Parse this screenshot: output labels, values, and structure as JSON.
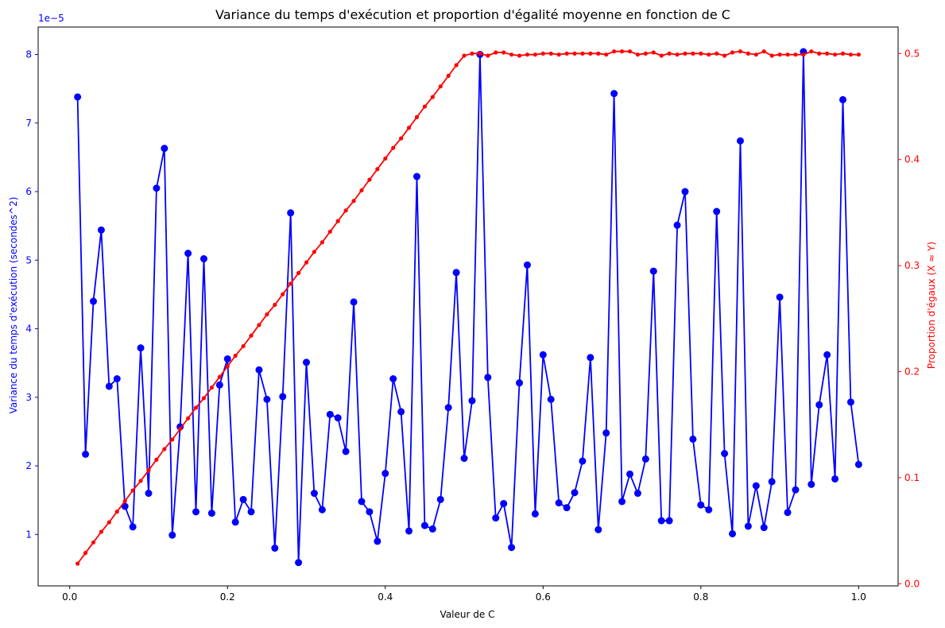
{
  "chart_data": {
    "type": "line",
    "title": "Variance du temps d'exécution et proportion d'égalité moyenne en fonction de C",
    "xlabel": "Valeur de C",
    "ylabel_left": "Variance du temps d'exécution (secondes^2)",
    "ylabel_right": "Proportion d'égaux (X ≈ Y)",
    "left_axis_multiplier": "1e−5",
    "xlim": [
      -0.04,
      1.05
    ],
    "ylim_left": [
      0.25,
      8.4
    ],
    "ylim_right": [
      -0.002,
      0.525
    ],
    "x_ticks": [
      0.0,
      0.2,
      0.4,
      0.6,
      0.8,
      1.0
    ],
    "x_tick_labels": [
      "0.0",
      "0.2",
      "0.4",
      "0.6",
      "0.8",
      "1.0"
    ],
    "left_ticks": [
      1,
      2,
      3,
      4,
      5,
      6,
      7,
      8
    ],
    "left_tick_labels": [
      "1",
      "2",
      "3",
      "4",
      "5",
      "6",
      "7",
      "8"
    ],
    "right_ticks": [
      0.0,
      0.1,
      0.2,
      0.3,
      0.4,
      0.5
    ],
    "right_tick_labels": [
      "0.0",
      "0.1",
      "0.2",
      "0.3",
      "0.4",
      "0.5"
    ],
    "grid": false,
    "colors": {
      "variance": "#0000ff",
      "proportion": "#ff0000",
      "axis": "#000000"
    },
    "x": [
      0.01,
      0.02,
      0.03,
      0.04,
      0.05,
      0.06,
      0.07,
      0.08,
      0.09,
      0.1,
      0.11,
      0.12,
      0.13,
      0.14,
      0.15,
      0.16,
      0.17,
      0.18,
      0.19,
      0.2,
      0.21,
      0.22,
      0.23,
      0.24,
      0.25,
      0.26,
      0.27,
      0.28,
      0.29,
      0.3,
      0.31,
      0.32,
      0.33,
      0.34,
      0.35,
      0.36,
      0.37,
      0.38,
      0.39,
      0.4,
      0.41,
      0.42,
      0.43,
      0.44,
      0.45,
      0.46,
      0.47,
      0.48,
      0.49,
      0.5,
      0.51,
      0.52,
      0.53,
      0.54,
      0.55,
      0.56,
      0.57,
      0.58,
      0.59,
      0.6,
      0.61,
      0.62,
      0.63,
      0.64,
      0.65,
      0.66,
      0.67,
      0.68,
      0.69,
      0.7,
      0.71,
      0.72,
      0.73,
      0.74,
      0.75,
      0.76,
      0.77,
      0.78,
      0.79,
      0.8,
      0.81,
      0.82,
      0.83,
      0.84,
      0.85,
      0.86,
      0.87,
      0.88,
      0.89,
      0.9,
      0.91,
      0.92,
      0.93,
      0.94,
      0.95,
      0.96,
      0.97,
      0.98,
      0.99,
      1.0
    ],
    "series": [
      {
        "axis": "left",
        "values": [
          7.38,
          2.17,
          4.4,
          5.44,
          3.16,
          3.27,
          1.41,
          1.11,
          3.72,
          1.6,
          6.05,
          6.63,
          0.99,
          2.57,
          5.1,
          1.33,
          5.02,
          1.31,
          3.18,
          3.56,
          1.18,
          1.51,
          1.33,
          3.4,
          2.97,
          0.8,
          3.01,
          5.69,
          0.59,
          3.51,
          1.6,
          1.36,
          2.75,
          2.7,
          2.21,
          4.39,
          1.48,
          1.33,
          0.9,
          1.89,
          3.27,
          2.79,
          1.05,
          6.22,
          1.13,
          1.08,
          1.51,
          2.85,
          4.82,
          2.11,
          2.95,
          8.0,
          3.29,
          1.24,
          1.45,
          0.81,
          3.21,
          4.93,
          1.3,
          3.62,
          2.97,
          1.46,
          1.39,
          1.61,
          2.07,
          3.58,
          1.07,
          2.48,
          7.43,
          1.48,
          1.88,
          1.6,
          2.1,
          4.84,
          1.2,
          1.2,
          5.51,
          6.0,
          2.39,
          1.43,
          1.36,
          5.71,
          2.18,
          1.01,
          6.74,
          1.12,
          1.71,
          1.1,
          1.77,
          4.46,
          1.32,
          1.65,
          8.04,
          1.73,
          2.89,
          3.62,
          1.81,
          7.34,
          2.93,
          2.02
        ]
      },
      {
        "axis": "right",
        "values": [
          0.019,
          0.029,
          0.039,
          0.049,
          0.058,
          0.068,
          0.078,
          0.088,
          0.097,
          0.107,
          0.117,
          0.127,
          0.136,
          0.146,
          0.156,
          0.166,
          0.175,
          0.185,
          0.195,
          0.205,
          0.215,
          0.224,
          0.234,
          0.244,
          0.254,
          0.263,
          0.273,
          0.283,
          0.293,
          0.303,
          0.313,
          0.322,
          0.332,
          0.342,
          0.352,
          0.361,
          0.371,
          0.381,
          0.391,
          0.401,
          0.411,
          0.42,
          0.43,
          0.44,
          0.45,
          0.459,
          0.469,
          0.479,
          0.489,
          0.498,
          0.5,
          0.5,
          0.498,
          0.501,
          0.501,
          0.499,
          0.498,
          0.499,
          0.499,
          0.5,
          0.5,
          0.499,
          0.5,
          0.5,
          0.5,
          0.5,
          0.5,
          0.499,
          0.502,
          0.502,
          0.502,
          0.499,
          0.5,
          0.501,
          0.498,
          0.5,
          0.499,
          0.5,
          0.5,
          0.5,
          0.499,
          0.5,
          0.498,
          0.501,
          0.502,
          0.5,
          0.499,
          0.502,
          0.498,
          0.499,
          0.499,
          0.499,
          0.499,
          0.502,
          0.5,
          0.5,
          0.499,
          0.5,
          0.499,
          0.499
        ]
      }
    ]
  }
}
